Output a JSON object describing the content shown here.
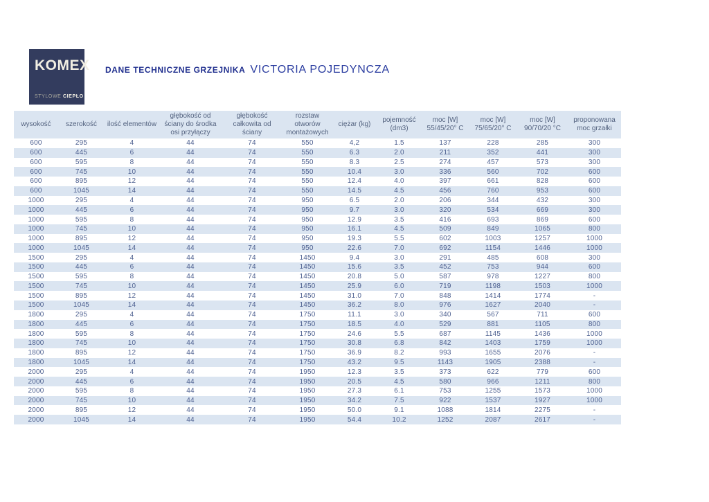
{
  "logo": {
    "brand": "KOMEX",
    "tagline_light": "STYLOWE",
    "tagline_bold": "CIEPŁO",
    "bg_color": "#333c5e",
    "text_color": "#f2efe3"
  },
  "title": {
    "prefix": "DANE TECHNICZNE GRZEJNIKA",
    "product": "VICTORIA POJEDYNCZA",
    "color": "#2b3da0"
  },
  "table": {
    "colors": {
      "stripe": "#dbe5f1",
      "header_bg": "#dbe5f1",
      "text": "#4d6090"
    },
    "columns": [
      {
        "id": "wysokosc",
        "label": "wysokość"
      },
      {
        "id": "szerokosc",
        "label": "szerokość"
      },
      {
        "id": "ilosc-elementow",
        "label": "ilość elementów"
      },
      {
        "id": "glebokosc-osi-przylaczy",
        "label": "głębokość od ściany do środka osi przyłączy"
      },
      {
        "id": "glebokosc-calkowita",
        "label": "głębokość całkowita od ściany"
      },
      {
        "id": "rozstaw-otworow",
        "label": "rozstaw otworów montażowych"
      },
      {
        "id": "ciezar",
        "label": "ciężar (kg)"
      },
      {
        "id": "pojemnosc",
        "label": "pojemność (dm3)"
      },
      {
        "id": "moc-55",
        "label": "moc [W] 55/45/20° C"
      },
      {
        "id": "moc-75",
        "label": "moc [W] 75/65/20° C"
      },
      {
        "id": "moc-90",
        "label": "moc [W] 90/70/20 °C"
      },
      {
        "id": "moc-grzalki",
        "label": "proponowana moc grzałki"
      }
    ],
    "rows": [
      [
        "600",
        "295",
        "4",
        "44",
        "74",
        "550",
        "4,2",
        "1.5",
        "137",
        "228",
        "285",
        "300"
      ],
      [
        "600",
        "445",
        "6",
        "44",
        "74",
        "550",
        "6.3",
        "2.0",
        "211",
        "352",
        "441",
        "300"
      ],
      [
        "600",
        "595",
        "8",
        "44",
        "74",
        "550",
        "8.3",
        "2.5",
        "274",
        "457",
        "573",
        "300"
      ],
      [
        "600",
        "745",
        "10",
        "44",
        "74",
        "550",
        "10.4",
        "3.0",
        "336",
        "560",
        "702",
        "600"
      ],
      [
        "600",
        "895",
        "12",
        "44",
        "74",
        "550",
        "12.4",
        "4.0",
        "397",
        "661",
        "828",
        "600"
      ],
      [
        "600",
        "1045",
        "14",
        "44",
        "74",
        "550",
        "14.5",
        "4.5",
        "456",
        "760",
        "953",
        "600"
      ],
      [
        "1000",
        "295",
        "4",
        "44",
        "74",
        "950",
        "6.5",
        "2.0",
        "206",
        "344",
        "432",
        "300"
      ],
      [
        "1000",
        "445",
        "6",
        "44",
        "74",
        "950",
        "9.7",
        "3.0",
        "320",
        "534",
        "669",
        "300"
      ],
      [
        "1000",
        "595",
        "8",
        "44",
        "74",
        "950",
        "12.9",
        "3.5",
        "416",
        "693",
        "869",
        "600"
      ],
      [
        "1000",
        "745",
        "10",
        "44",
        "74",
        "950",
        "16.1",
        "4.5",
        "509",
        "849",
        "1065",
        "800"
      ],
      [
        "1000",
        "895",
        "12",
        "44",
        "74",
        "950",
        "19.3",
        "5.5",
        "602",
        "1003",
        "1257",
        "1000"
      ],
      [
        "1000",
        "1045",
        "14",
        "44",
        "74",
        "950",
        "22.6",
        "7.0",
        "692",
        "1154",
        "1446",
        "1000"
      ],
      [
        "1500",
        "295",
        "4",
        "44",
        "74",
        "1450",
        "9.4",
        "3.0",
        "291",
        "485",
        "608",
        "300"
      ],
      [
        "1500",
        "445",
        "6",
        "44",
        "74",
        "1450",
        "15.6",
        "3.5",
        "452",
        "753",
        "944",
        "600"
      ],
      [
        "1500",
        "595",
        "8",
        "44",
        "74",
        "1450",
        "20.8",
        "5.0",
        "587",
        "978",
        "1227",
        "800"
      ],
      [
        "1500",
        "745",
        "10",
        "44",
        "74",
        "1450",
        "25.9",
        "6.0",
        "719",
        "1198",
        "1503",
        "1000"
      ],
      [
        "1500",
        "895",
        "12",
        "44",
        "74",
        "1450",
        "31.0",
        "7.0",
        "848",
        "1414",
        "1774",
        "-"
      ],
      [
        "1500",
        "1045",
        "14",
        "44",
        "74",
        "1450",
        "36.2",
        "8.0",
        "976",
        "1627",
        "2040",
        "-"
      ],
      [
        "1800",
        "295",
        "4",
        "44",
        "74",
        "1750",
        "11.1",
        "3.0",
        "340",
        "567",
        "711",
        "600"
      ],
      [
        "1800",
        "445",
        "6",
        "44",
        "74",
        "1750",
        "18.5",
        "4.0",
        "529",
        "881",
        "1105",
        "800"
      ],
      [
        "1800",
        "595",
        "8",
        "44",
        "74",
        "1750",
        "24.6",
        "5.5",
        "687",
        "1145",
        "1436",
        "1000"
      ],
      [
        "1800",
        "745",
        "10",
        "44",
        "74",
        "1750",
        "30.8",
        "6.8",
        "842",
        "1403",
        "1759",
        "1000"
      ],
      [
        "1800",
        "895",
        "12",
        "44",
        "74",
        "1750",
        "36.9",
        "8.2",
        "993",
        "1655",
        "2076",
        "-"
      ],
      [
        "1800",
        "1045",
        "14",
        "44",
        "74",
        "1750",
        "43.2",
        "9.5",
        "1143",
        "1905",
        "2388",
        "-"
      ],
      [
        "2000",
        "295",
        "4",
        "44",
        "74",
        "1950",
        "12.3",
        "3.5",
        "373",
        "622",
        "779",
        "600"
      ],
      [
        "2000",
        "445",
        "6",
        "44",
        "74",
        "1950",
        "20.5",
        "4.5",
        "580",
        "966",
        "1211",
        "800"
      ],
      [
        "2000",
        "595",
        "8",
        "44",
        "74",
        "1950",
        "27.3",
        "6.1",
        "753",
        "1255",
        "1573",
        "1000"
      ],
      [
        "2000",
        "745",
        "10",
        "44",
        "74",
        "1950",
        "34.2",
        "7.5",
        "922",
        "1537",
        "1927",
        "1000"
      ],
      [
        "2000",
        "895",
        "12",
        "44",
        "74",
        "1950",
        "50.0",
        "9.1",
        "1088",
        "1814",
        "2275",
        "-"
      ],
      [
        "2000",
        "1045",
        "14",
        "44",
        "74",
        "1950",
        "54.4",
        "10.2",
        "1252",
        "2087",
        "2617",
        "-"
      ]
    ]
  }
}
